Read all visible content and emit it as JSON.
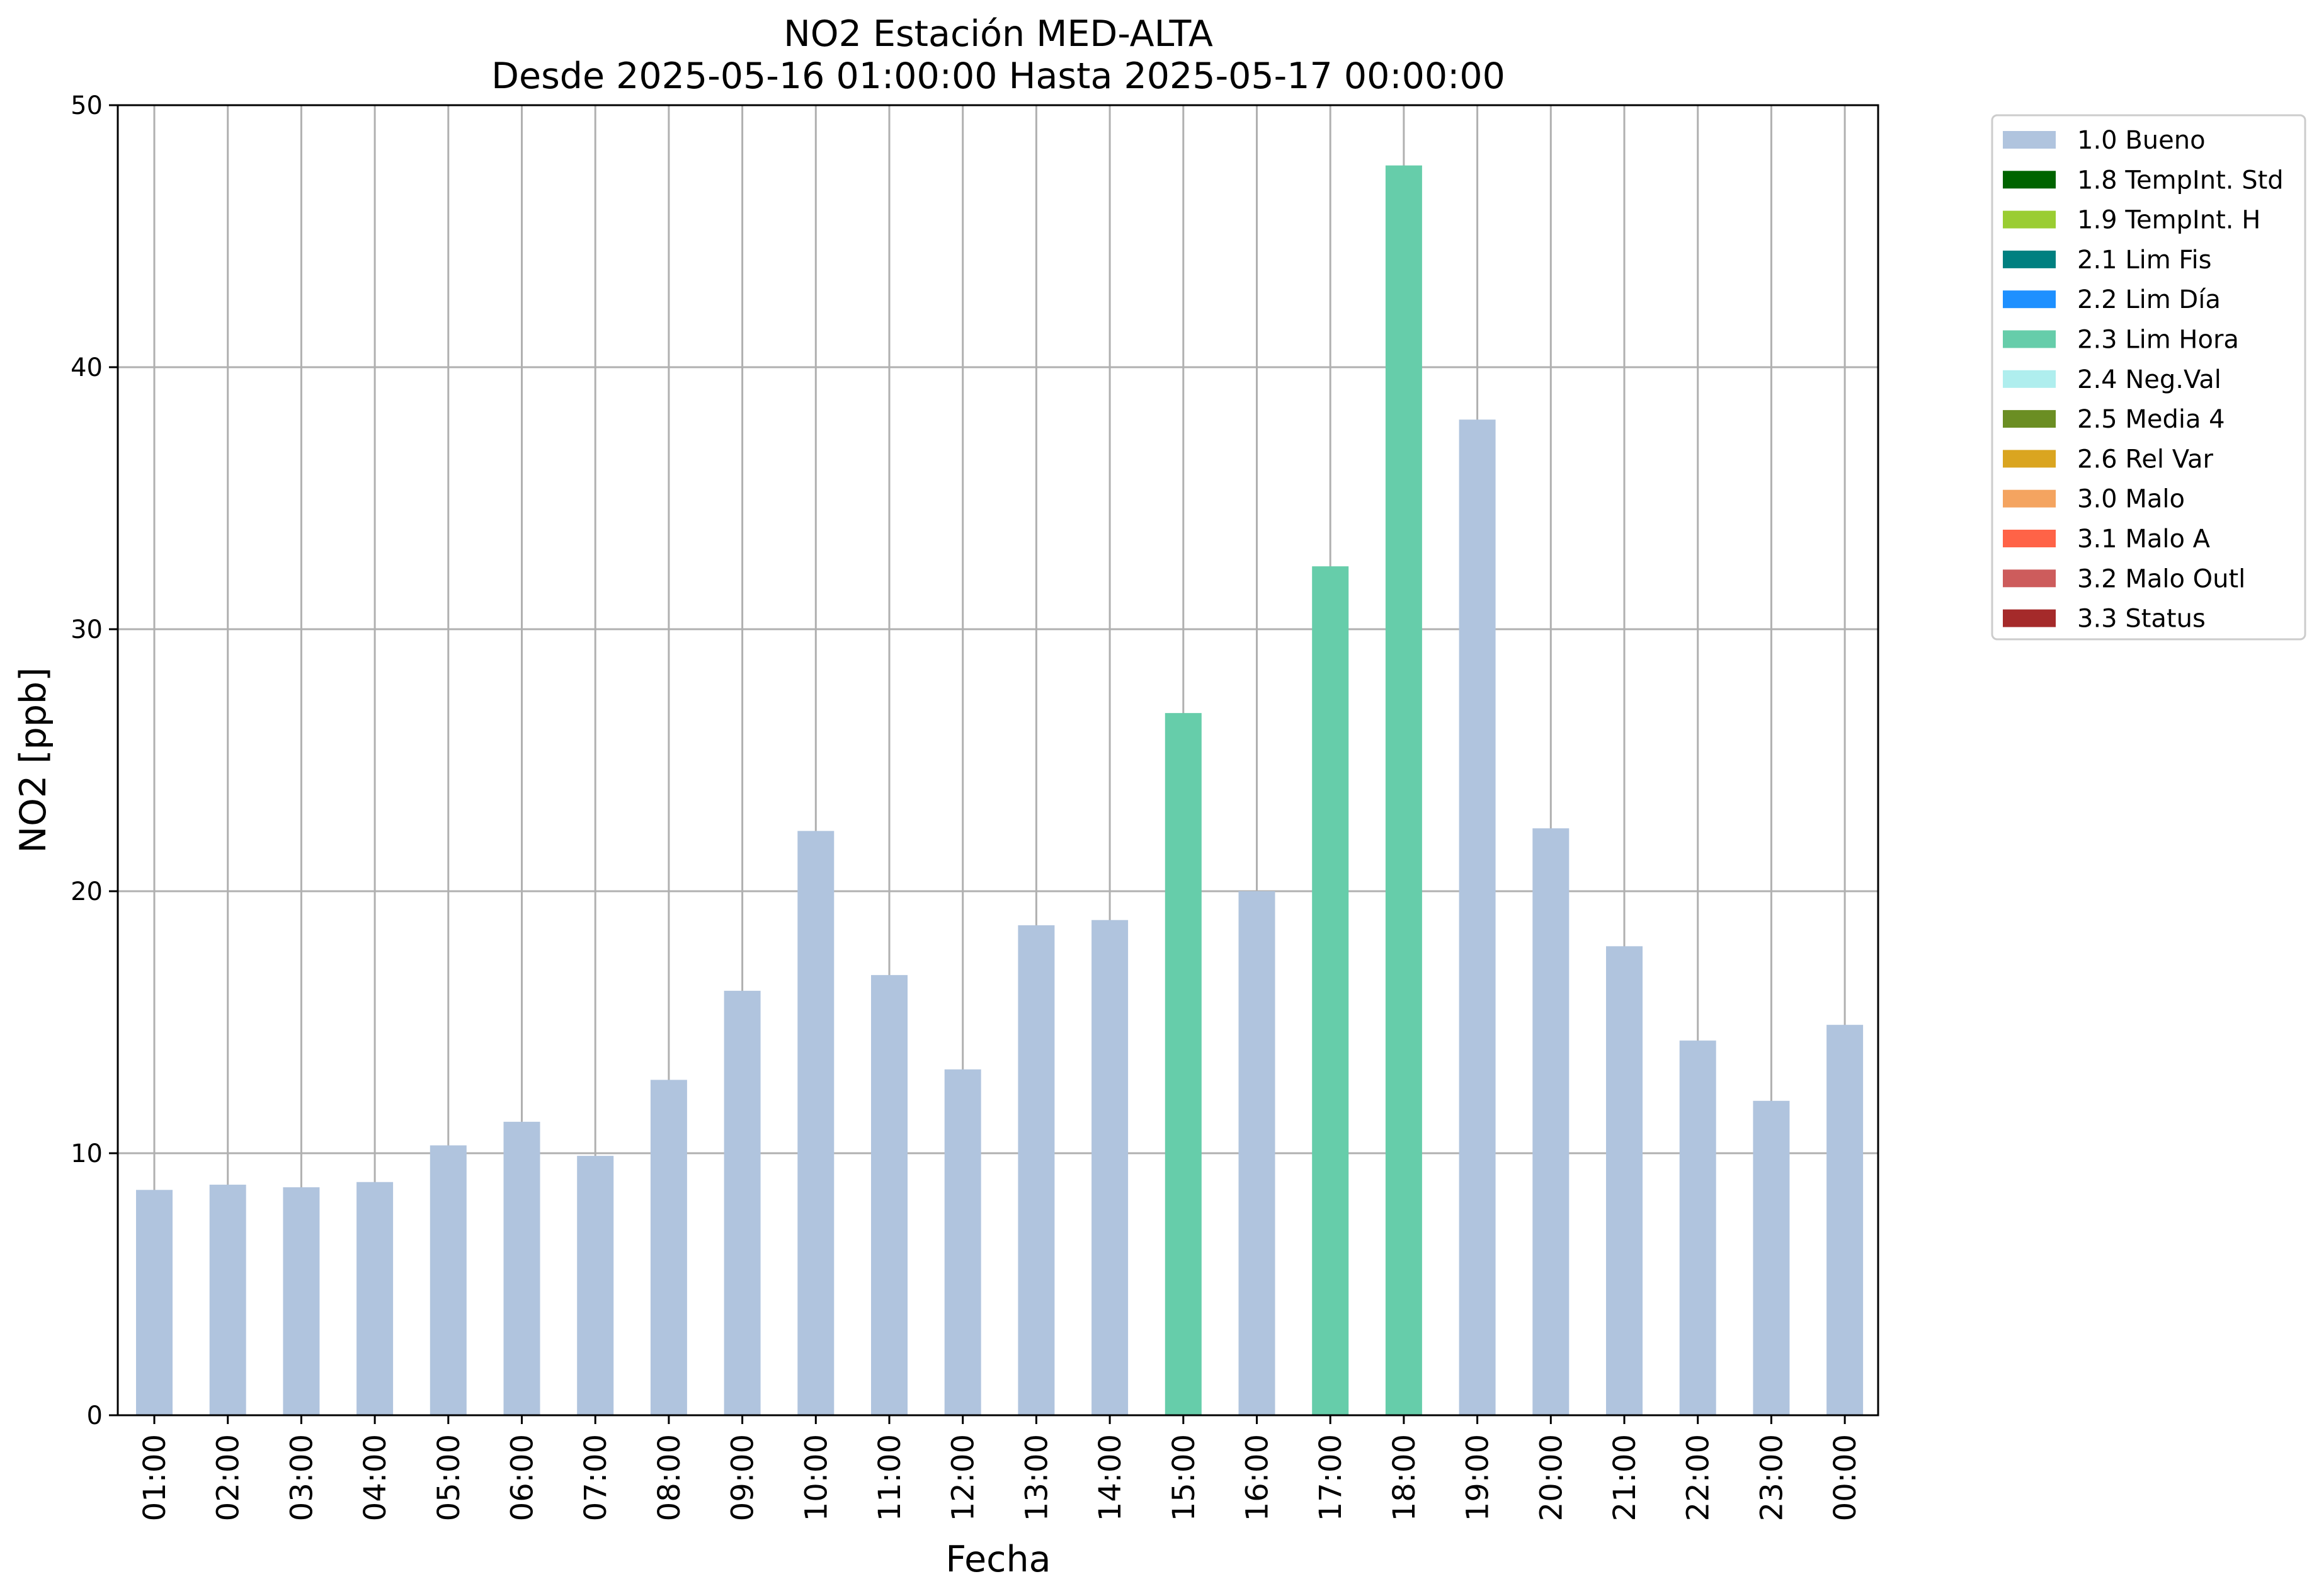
{
  "chart_data": {
    "type": "bar",
    "title": "NO2 Estación MED-ALTA",
    "subtitle": "Desde 2025-05-16 01:00:00 Hasta 2025-05-17 00:00:00",
    "xlabel": "Fecha",
    "ylabel": "NO2 [ppb]",
    "ylim": [
      0,
      50
    ],
    "yticks": [
      "0",
      "10",
      "20",
      "30",
      "40",
      "50"
    ],
    "grid": true,
    "legend_position": "outside-top-right",
    "categories": [
      "01:00",
      "02:00",
      "03:00",
      "04:00",
      "05:00",
      "06:00",
      "07:00",
      "08:00",
      "09:00",
      "10:00",
      "11:00",
      "12:00",
      "13:00",
      "14:00",
      "15:00",
      "16:00",
      "17:00",
      "18:00",
      "19:00",
      "20:00",
      "21:00",
      "22:00",
      "23:00",
      "00:00"
    ],
    "values": [
      8.6,
      8.8,
      8.7,
      8.9,
      10.3,
      11.2,
      9.9,
      12.8,
      16.2,
      22.3,
      16.8,
      13.2,
      18.7,
      18.9,
      26.8,
      20.0,
      32.4,
      47.7,
      38.0,
      22.4,
      17.9,
      14.3,
      12.0,
      14.9
    ],
    "flags": [
      "1.0 Bueno",
      "1.0 Bueno",
      "1.0 Bueno",
      "1.0 Bueno",
      "1.0 Bueno",
      "1.0 Bueno",
      "1.0 Bueno",
      "1.0 Bueno",
      "1.0 Bueno",
      "1.0 Bueno",
      "1.0 Bueno",
      "1.0 Bueno",
      "1.0 Bueno",
      "1.0 Bueno",
      "2.3 Lim Hora",
      "1.0 Bueno",
      "2.3 Lim Hora",
      "2.3 Lim Hora",
      "1.0 Bueno",
      "1.0 Bueno",
      "1.0 Bueno",
      "1.0 Bueno",
      "1.0 Bueno",
      "1.0 Bueno"
    ],
    "legend": [
      {
        "label": "1.0 Bueno",
        "color": "#b0c4de"
      },
      {
        "label": "1.8 TempInt. Std",
        "color": "#006400"
      },
      {
        "label": "1.9 TempInt. H",
        "color": "#9acd32"
      },
      {
        "label": "2.1 Lim Fis",
        "color": "#008080"
      },
      {
        "label": "2.2 Lim Día",
        "color": "#1e90ff"
      },
      {
        "label": "2.3 Lim Hora",
        "color": "#66cdaa"
      },
      {
        "label": "2.4 Neg.Val",
        "color": "#afeeee"
      },
      {
        "label": "2.5 Media 4",
        "color": "#6b8e23"
      },
      {
        "label": "2.6 Rel Var",
        "color": "#daa520"
      },
      {
        "label": "3.0 Malo",
        "color": "#f4a460"
      },
      {
        "label": "3.1 Malo A",
        "color": "#ff6347"
      },
      {
        "label": "3.2 Malo Outl",
        "color": "#cd5c5c"
      },
      {
        "label": "3.3 Status",
        "color": "#a52a2a"
      }
    ]
  }
}
